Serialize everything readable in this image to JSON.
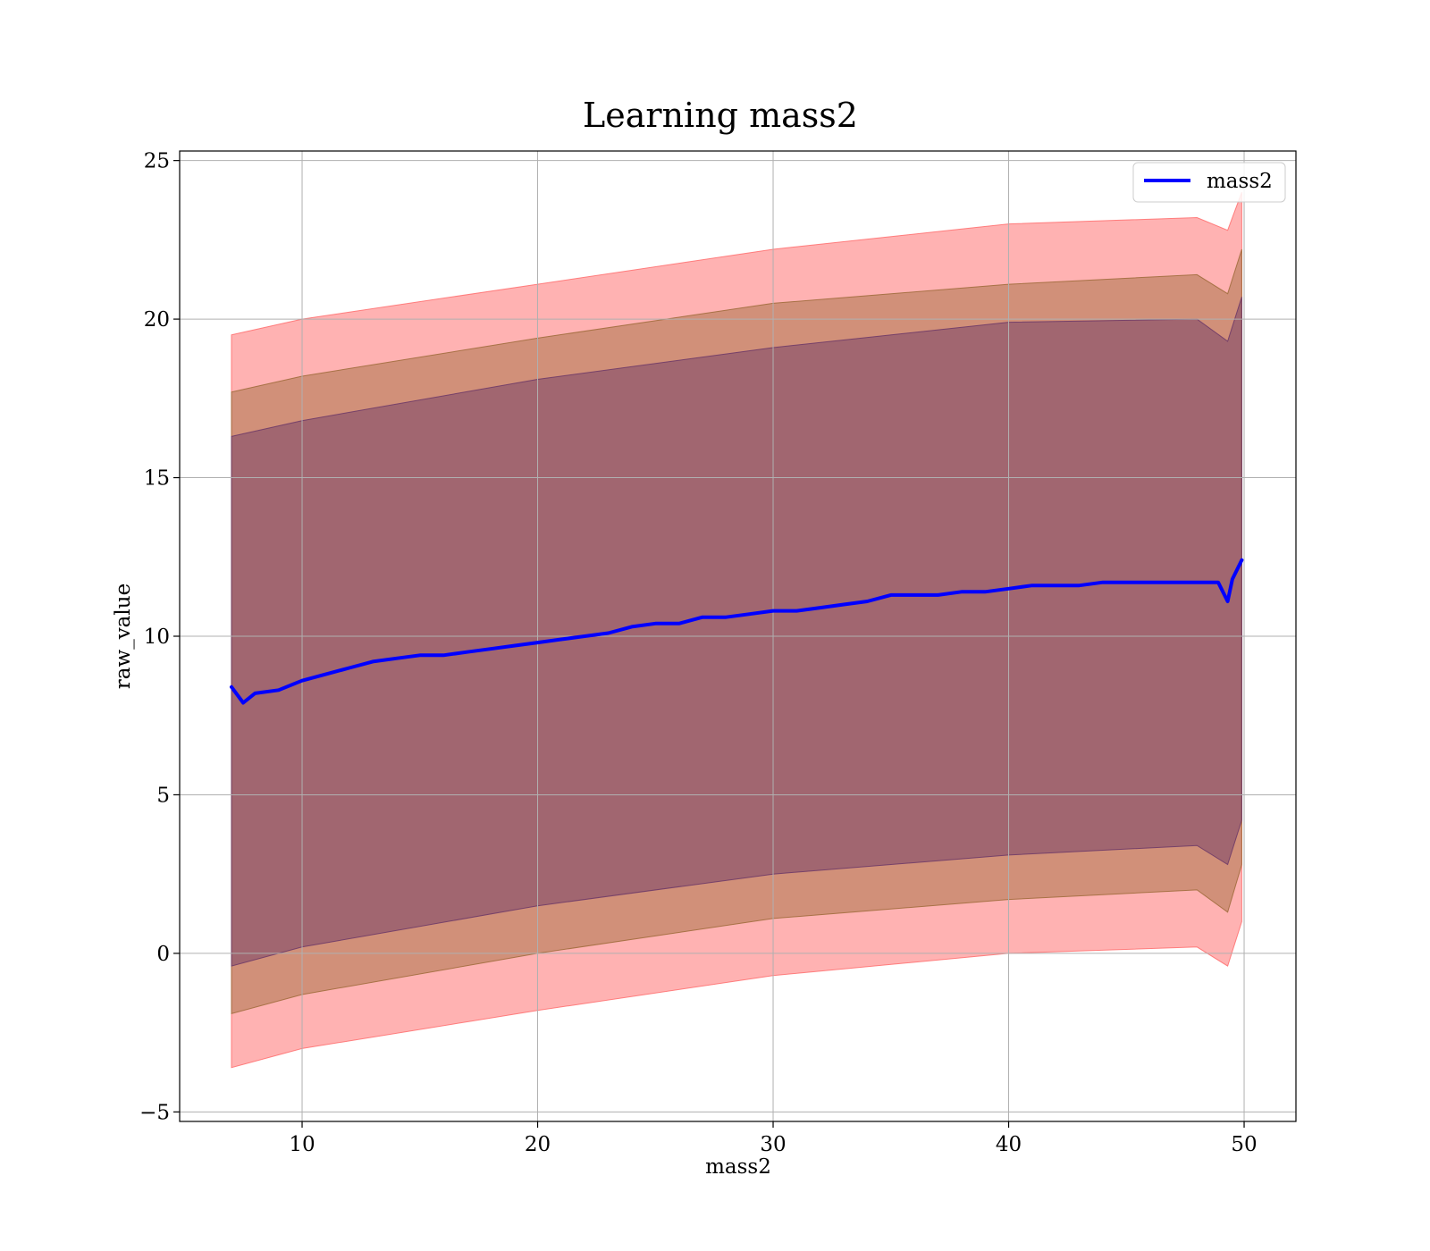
{
  "chart_data": {
    "type": "line",
    "title": "Learning mass2",
    "xlabel": "mass2",
    "ylabel": "raw_value",
    "xlim": [
      4.8,
      52.2
    ],
    "ylim": [
      -5.3,
      25.3
    ],
    "x_ticks": [
      10,
      20,
      30,
      40,
      50
    ],
    "y_ticks": [
      -5,
      0,
      5,
      10,
      15,
      20,
      25
    ],
    "x_tick_labels": [
      "10",
      "20",
      "30",
      "40",
      "50"
    ],
    "y_tick_labels": [
      "−5",
      "0",
      "5",
      "10",
      "15",
      "20",
      "25"
    ],
    "grid": true,
    "legend_position": "upper right",
    "series": [
      {
        "name": "mass2",
        "color": "#0000ff",
        "x": [
          7.0,
          7.5,
          8.0,
          9.0,
          10.0,
          11.0,
          12.0,
          13.0,
          14.0,
          15.0,
          16.0,
          17.0,
          18.0,
          19.0,
          20.0,
          21.0,
          22.0,
          23.0,
          24.0,
          25.0,
          26.0,
          27.0,
          28.0,
          29.0,
          30.0,
          31.0,
          32.0,
          33.0,
          34.0,
          35.0,
          36.0,
          37.0,
          38.0,
          39.0,
          40.0,
          41.0,
          42.0,
          43.0,
          44.0,
          45.0,
          46.0,
          47.0,
          48.0,
          48.9,
          49.3,
          49.5,
          49.9
        ],
        "values": [
          8.4,
          7.9,
          8.2,
          8.3,
          8.6,
          8.8,
          9.0,
          9.2,
          9.3,
          9.4,
          9.4,
          9.5,
          9.6,
          9.7,
          9.8,
          9.9,
          10.0,
          10.1,
          10.3,
          10.4,
          10.4,
          10.6,
          10.6,
          10.7,
          10.8,
          10.8,
          10.9,
          11.0,
          11.1,
          11.3,
          11.3,
          11.3,
          11.4,
          11.4,
          11.5,
          11.6,
          11.6,
          11.6,
          11.7,
          11.7,
          11.7,
          11.7,
          11.7,
          11.7,
          11.1,
          11.8,
          12.4
        ]
      }
    ],
    "bands": [
      {
        "color": "#ff6666",
        "opacity": 0.5,
        "x": [
          7.0,
          10.0,
          20.0,
          30.0,
          40.0,
          48.0,
          49.3,
          49.9
        ],
        "lower": [
          -3.6,
          -3.0,
          -1.8,
          -0.7,
          0.0,
          0.2,
          -0.4,
          1.0
        ],
        "upper": [
          19.5,
          20.0,
          21.1,
          22.2,
          23.0,
          23.2,
          22.8,
          24.0
        ]
      },
      {
        "color": "#996633",
        "opacity": 0.45,
        "x": [
          7.0,
          10.0,
          20.0,
          30.0,
          40.0,
          48.0,
          49.3,
          49.9
        ],
        "lower": [
          -1.9,
          -1.3,
          0.0,
          1.1,
          1.7,
          2.0,
          1.3,
          2.8
        ],
        "upper": [
          17.7,
          18.2,
          19.4,
          20.5,
          21.1,
          21.4,
          20.8,
          22.2
        ]
      },
      {
        "color": "#663366",
        "opacity": 0.45,
        "x": [
          7.0,
          10.0,
          20.0,
          30.0,
          40.0,
          48.0,
          49.3,
          49.9
        ],
        "lower": [
          -0.4,
          0.2,
          1.5,
          2.5,
          3.1,
          3.4,
          2.8,
          4.2
        ],
        "upper": [
          16.3,
          16.8,
          18.1,
          19.1,
          19.9,
          20.0,
          19.3,
          20.7
        ]
      }
    ]
  }
}
